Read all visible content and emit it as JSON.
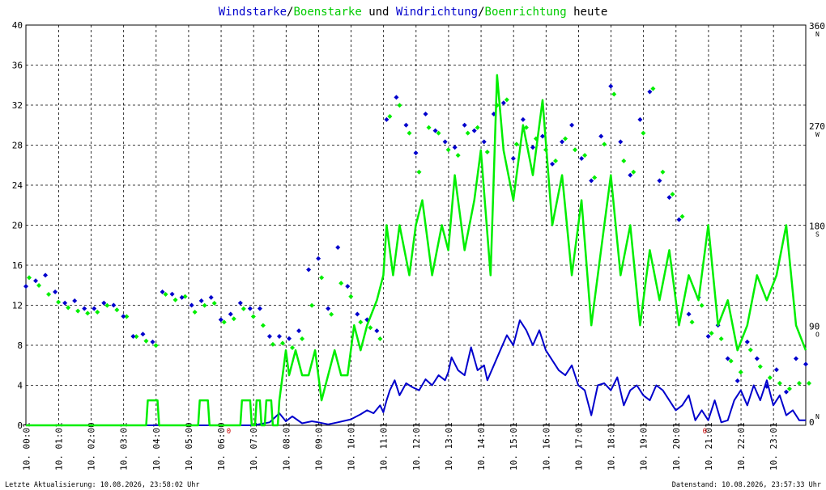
{
  "title": {
    "part1": "Windstarke",
    "sep1": "/",
    "part2": "Boenstarke",
    "part3": " und ",
    "part4": "Windrichtung",
    "sep2": "/",
    "part5": "Boenrichtung",
    "part6": " heute"
  },
  "footer": {
    "left": "Letzte Aktualisierung: 10.08.2026, 23:58:02 Uhr",
    "right": "Datenstand: 10.08.2026, 23:57:33 Uhr"
  },
  "colors": {
    "wind": "#0000cc",
    "gust": "#00ee00",
    "grid": "#000000",
    "marker": "#cc0000"
  },
  "chart_data": {
    "type": "line",
    "x_unit": "hours",
    "xlim": [
      0,
      24
    ],
    "ylim": [
      0,
      40
    ],
    "y_ticks": [
      0,
      4,
      8,
      12,
      16,
      20,
      24,
      28,
      32,
      36,
      40
    ],
    "y2lim": [
      0,
      360
    ],
    "y2_ticks": [
      {
        "value": 0,
        "label": "0",
        "dir": "N"
      },
      {
        "value": 90,
        "label": "90",
        "dir": "O"
      },
      {
        "value": 180,
        "label": "180",
        "dir": "S"
      },
      {
        "value": 270,
        "label": "270",
        "dir": "W"
      },
      {
        "value": 360,
        "label": "360",
        "dir": "N"
      }
    ],
    "x_tick_labels": [
      "10. 00:01",
      "10. 01:01",
      "10. 02:00",
      "10. 03:01",
      "10. 04:01",
      "10. 05:00",
      "10. 06:00",
      "10. 07:01",
      "10. 08:01",
      "10. 09:01",
      "10. 10:01",
      "10. 11:01",
      "10. 12:01",
      "10. 13:01",
      "10. 14:01",
      "10. 15:01",
      "10. 16:01",
      "10. 17:01",
      "10. 18:01",
      "10. 19:01",
      "10. 20:01",
      "10. 21:01",
      "10. 22:01",
      "10. 23:01"
    ],
    "x_tick_hours": [
      0,
      1,
      2,
      3,
      4,
      5,
      6,
      7,
      8,
      9,
      10,
      11,
      12,
      13,
      14,
      15,
      16,
      17,
      18,
      19,
      20,
      21,
      22,
      23
    ],
    "midnight_markers": [
      6.25,
      20.9
    ],
    "grid": true,
    "series": [
      {
        "name": "Windstarke",
        "role": "wind_speed",
        "x": [
          0,
          1,
          2,
          3,
          4,
          5,
          6,
          7,
          7.5,
          7.8,
          8.0,
          8.2,
          8.5,
          8.8,
          9.0,
          9.3,
          9.6,
          10.0,
          10.3,
          10.5,
          10.7,
          10.9,
          11.0,
          11.1,
          11.2,
          11.35,
          11.5,
          11.7,
          11.9,
          12.1,
          12.3,
          12.5,
          12.7,
          12.9,
          13.0,
          13.1,
          13.3,
          13.5,
          13.7,
          13.9,
          14.1,
          14.2,
          14.4,
          14.6,
          14.8,
          15.0,
          15.2,
          15.4,
          15.6,
          15.8,
          16.0,
          16.2,
          16.4,
          16.6,
          16.8,
          17.0,
          17.2,
          17.4,
          17.6,
          17.8,
          18.0,
          18.2,
          18.4,
          18.6,
          18.8,
          19.0,
          19.2,
          19.4,
          19.6,
          19.8,
          20.0,
          20.2,
          20.4,
          20.6,
          20.8,
          21.0,
          21.2,
          21.4,
          21.6,
          21.8,
          22.0,
          22.2,
          22.4,
          22.6,
          22.8,
          23.0,
          23.2,
          23.4,
          23.6,
          23.8,
          24.0
        ],
        "values": [
          0,
          0,
          0,
          0,
          0,
          0,
          0,
          0,
          0.3,
          1.2,
          0.4,
          0.9,
          0.2,
          0.4,
          0.3,
          0.1,
          0.3,
          0.6,
          1.1,
          1.5,
          1.2,
          2.0,
          1.3,
          2.5,
          3.5,
          4.5,
          3.0,
          4.2,
          3.8,
          3.5,
          4.6,
          4.0,
          5.0,
          4.5,
          5.3,
          6.8,
          5.5,
          5.0,
          7.8,
          5.5,
          6.0,
          4.5,
          6.0,
          7.5,
          9.0,
          8.0,
          10.5,
          9.5,
          8.0,
          9.5,
          7.5,
          6.5,
          5.5,
          5.0,
          6.0,
          4.0,
          3.5,
          1.0,
          4.0,
          4.2,
          3.5,
          4.8,
          2.0,
          3.5,
          4.0,
          3.0,
          2.5,
          4.0,
          3.5,
          2.5,
          1.5,
          2.0,
          3.0,
          0.5,
          1.5,
          0.5,
          2.5,
          0.3,
          0.5,
          2.5,
          3.5,
          2.0,
          4.0,
          2.5,
          4.5,
          2.0,
          3.0,
          1.0,
          1.5,
          0.5,
          0.5
        ]
      },
      {
        "name": "Boenstarke",
        "role": "gust_speed",
        "x": [
          0,
          3.7,
          3.75,
          4.05,
          4.1,
          5.3,
          5.35,
          5.6,
          5.65,
          6.6,
          6.65,
          6.9,
          6.95,
          7.05,
          7.1,
          7.2,
          7.25,
          7.35,
          7.4,
          7.55,
          7.6,
          7.75,
          7.8,
          8.0,
          8.1,
          8.3,
          8.5,
          8.7,
          8.9,
          9.1,
          9.3,
          9.5,
          9.7,
          9.9,
          10.1,
          10.3,
          10.5,
          10.8,
          11.0,
          11.1,
          11.3,
          11.5,
          11.8,
          12.0,
          12.2,
          12.5,
          12.8,
          13.0,
          13.2,
          13.5,
          13.8,
          14.0,
          14.3,
          14.5,
          14.7,
          15.0,
          15.3,
          15.6,
          15.9,
          16.2,
          16.5,
          16.8,
          17.1,
          17.4,
          17.7,
          18.0,
          18.3,
          18.6,
          18.9,
          19.2,
          19.5,
          19.8,
          20.1,
          20.4,
          20.7,
          21.0,
          21.3,
          21.6,
          21.9,
          22.2,
          22.5,
          22.8,
          23.1,
          23.4,
          23.7,
          24.0
        ],
        "values": [
          0,
          0,
          2.5,
          2.5,
          0,
          0,
          2.5,
          2.5,
          0,
          0,
          2.5,
          2.5,
          0,
          0,
          2.5,
          2.5,
          0,
          0,
          2.5,
          2.5,
          0,
          0,
          2.5,
          7.5,
          5.0,
          7.5,
          5.0,
          5.0,
          7.5,
          2.5,
          5.0,
          7.5,
          5.0,
          5.0,
          10.0,
          7.5,
          10.0,
          12.5,
          15.0,
          20.0,
          15.0,
          20.0,
          15.0,
          20.0,
          22.5,
          15.0,
          20.0,
          17.5,
          25.0,
          17.5,
          22.5,
          27.5,
          15.0,
          35.0,
          27.5,
          22.5,
          30.0,
          25.0,
          32.5,
          20.0,
          25.0,
          15.0,
          22.5,
          10.0,
          17.5,
          25.0,
          15.0,
          20.0,
          10.0,
          17.5,
          12.5,
          17.5,
          10.0,
          15.0,
          12.5,
          20.0,
          10.0,
          12.5,
          7.5,
          10.0,
          15.0,
          12.5,
          15.0,
          20.0,
          10.0,
          7.5
        ]
      }
    ],
    "direction_points": {
      "wind_hours": [
        0,
        0.3,
        0.6,
        0.9,
        1.2,
        1.5,
        1.8,
        2.1,
        2.4,
        2.7,
        3.0,
        3.3,
        3.6,
        3.9,
        4.2,
        4.5,
        4.8,
        5.1,
        5.4,
        5.7,
        6.0,
        6.3,
        6.6,
        6.9,
        7.2,
        7.5,
        7.8,
        8.1,
        8.4,
        8.7,
        9.0,
        9.3,
        9.6,
        9.9,
        10.2,
        10.5,
        10.8,
        11.1,
        11.4,
        11.7,
        12.0,
        12.3,
        12.6,
        12.9,
        13.2,
        13.5,
        13.8,
        14.1,
        14.4,
        14.7,
        15.0,
        15.3,
        15.6,
        15.9,
        16.2,
        16.5,
        16.8,
        17.1,
        17.4,
        17.7,
        18.0,
        18.3,
        18.6,
        18.9,
        19.2,
        19.5,
        19.8,
        20.1,
        20.4,
        20.7,
        21.0,
        21.3,
        21.6,
        21.9,
        22.2,
        22.5,
        22.8,
        23.1,
        23.4,
        23.7,
        24.0
      ],
      "wind_deg": [
        125,
        130,
        135,
        120,
        110,
        112,
        105,
        105,
        110,
        108,
        98,
        80,
        82,
        75,
        120,
        118,
        115,
        108,
        112,
        115,
        95,
        100,
        110,
        105,
        105,
        80,
        80,
        78,
        85,
        140,
        150,
        105,
        160,
        125,
        100,
        95,
        85,
        275,
        295,
        270,
        245,
        280,
        265,
        255,
        250,
        270,
        265,
        255,
        280,
        290,
        240,
        275,
        250,
        260,
        235,
        255,
        270,
        240,
        220,
        260,
        305,
        255,
        225,
        275,
        300,
        220,
        205,
        185,
        100,
        115,
        80,
        90,
        60,
        40,
        75,
        60,
        35,
        50,
        30,
        60,
        55
      ],
      "gust_deg": [
        135,
        128,
        120,
        113,
        108,
        105,
        103,
        104,
        110,
        106,
        100,
        82,
        78,
        74,
        120,
        115,
        118,
        104,
        110,
        112,
        95,
        98,
        107,
        100,
        92,
        75,
        76,
        72,
        80,
        110,
        135,
        102,
        130,
        118,
        95,
        90,
        80,
        280,
        290,
        265,
        230,
        270,
        265,
        250,
        245,
        265,
        270,
        248,
        290,
        295,
        255,
        270,
        260,
        250,
        240,
        260,
        250,
        245,
        225,
        255,
        300,
        240,
        230,
        265,
        305,
        230,
        210,
        190,
        95,
        110,
        85,
        80,
        60,
        50,
        70,
        55,
        45,
        40,
        35,
        40,
        40
      ]
    }
  }
}
